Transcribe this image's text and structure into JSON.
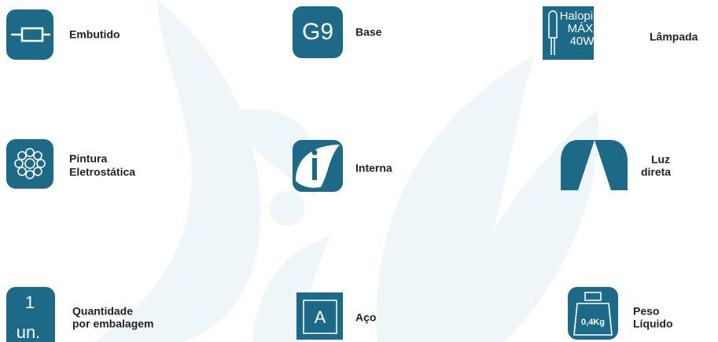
{
  "items": [
    {
      "label": [
        "Embutido"
      ]
    },
    {
      "icon": [
        "G9"
      ],
      "label": [
        "Base"
      ]
    },
    {
      "icon": [
        "Halopin",
        "MÁX.",
        "40W"
      ],
      "label": [
        "Lâmpada"
      ]
    },
    {
      "label": [
        "Pintura",
        "Eletrostática"
      ]
    },
    {
      "label": [
        "Interna"
      ]
    },
    {
      "label": [
        "Luz",
        "direta"
      ]
    },
    {
      "icon": [
        "1",
        "un."
      ],
      "label": [
        "Quantidade",
        "por embalagem"
      ]
    },
    {
      "icon": [
        "A"
      ],
      "label": [
        "Aço"
      ]
    },
    {
      "icon": [
        "0,4Kg"
      ],
      "label": [
        "Peso",
        "Líquido"
      ]
    }
  ]
}
